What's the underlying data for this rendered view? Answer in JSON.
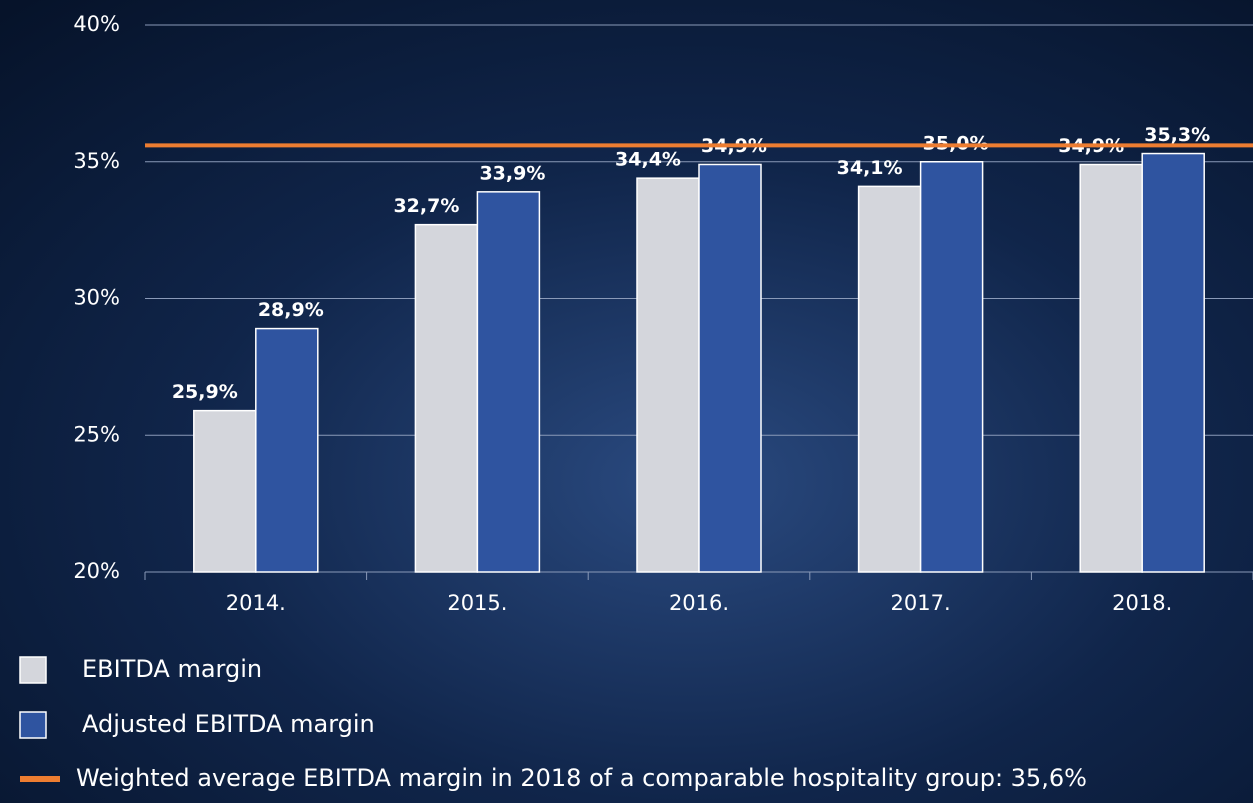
{
  "chart_data": {
    "type": "bar",
    "categories": [
      "2014.",
      "2015.",
      "2016.",
      "2017.",
      "2018."
    ],
    "series": [
      {
        "name": "EBITDA margin",
        "color": "#d4d6dc",
        "values": [
          25.9,
          32.7,
          34.4,
          34.1,
          34.9
        ],
        "value_labels": [
          "25,9%",
          "32,7%",
          "34,4%",
          "34,1%",
          "34,9%"
        ]
      },
      {
        "name": "Adjusted EBITDA margin",
        "color": "#2f54a0",
        "values": [
          28.9,
          33.9,
          34.9,
          35.0,
          35.3
        ],
        "value_labels": [
          "28,9%",
          "33,9%",
          "34,9%",
          "35,0%",
          "35,3%"
        ]
      }
    ],
    "reference_line": {
      "value": 35.6,
      "label": "Weighted average EBITDA margin in 2018 of a comparable hospitality group: 35,6%",
      "color": "#ed7d31"
    },
    "ylim": [
      20,
      40
    ],
    "yticks": [
      {
        "value": 20,
        "label": "20%"
      },
      {
        "value": 25,
        "label": "25%"
      },
      {
        "value": 30,
        "label": "30%"
      },
      {
        "value": 35,
        "label": "35%"
      },
      {
        "value": 40,
        "label": "40%"
      }
    ],
    "grid": true
  }
}
